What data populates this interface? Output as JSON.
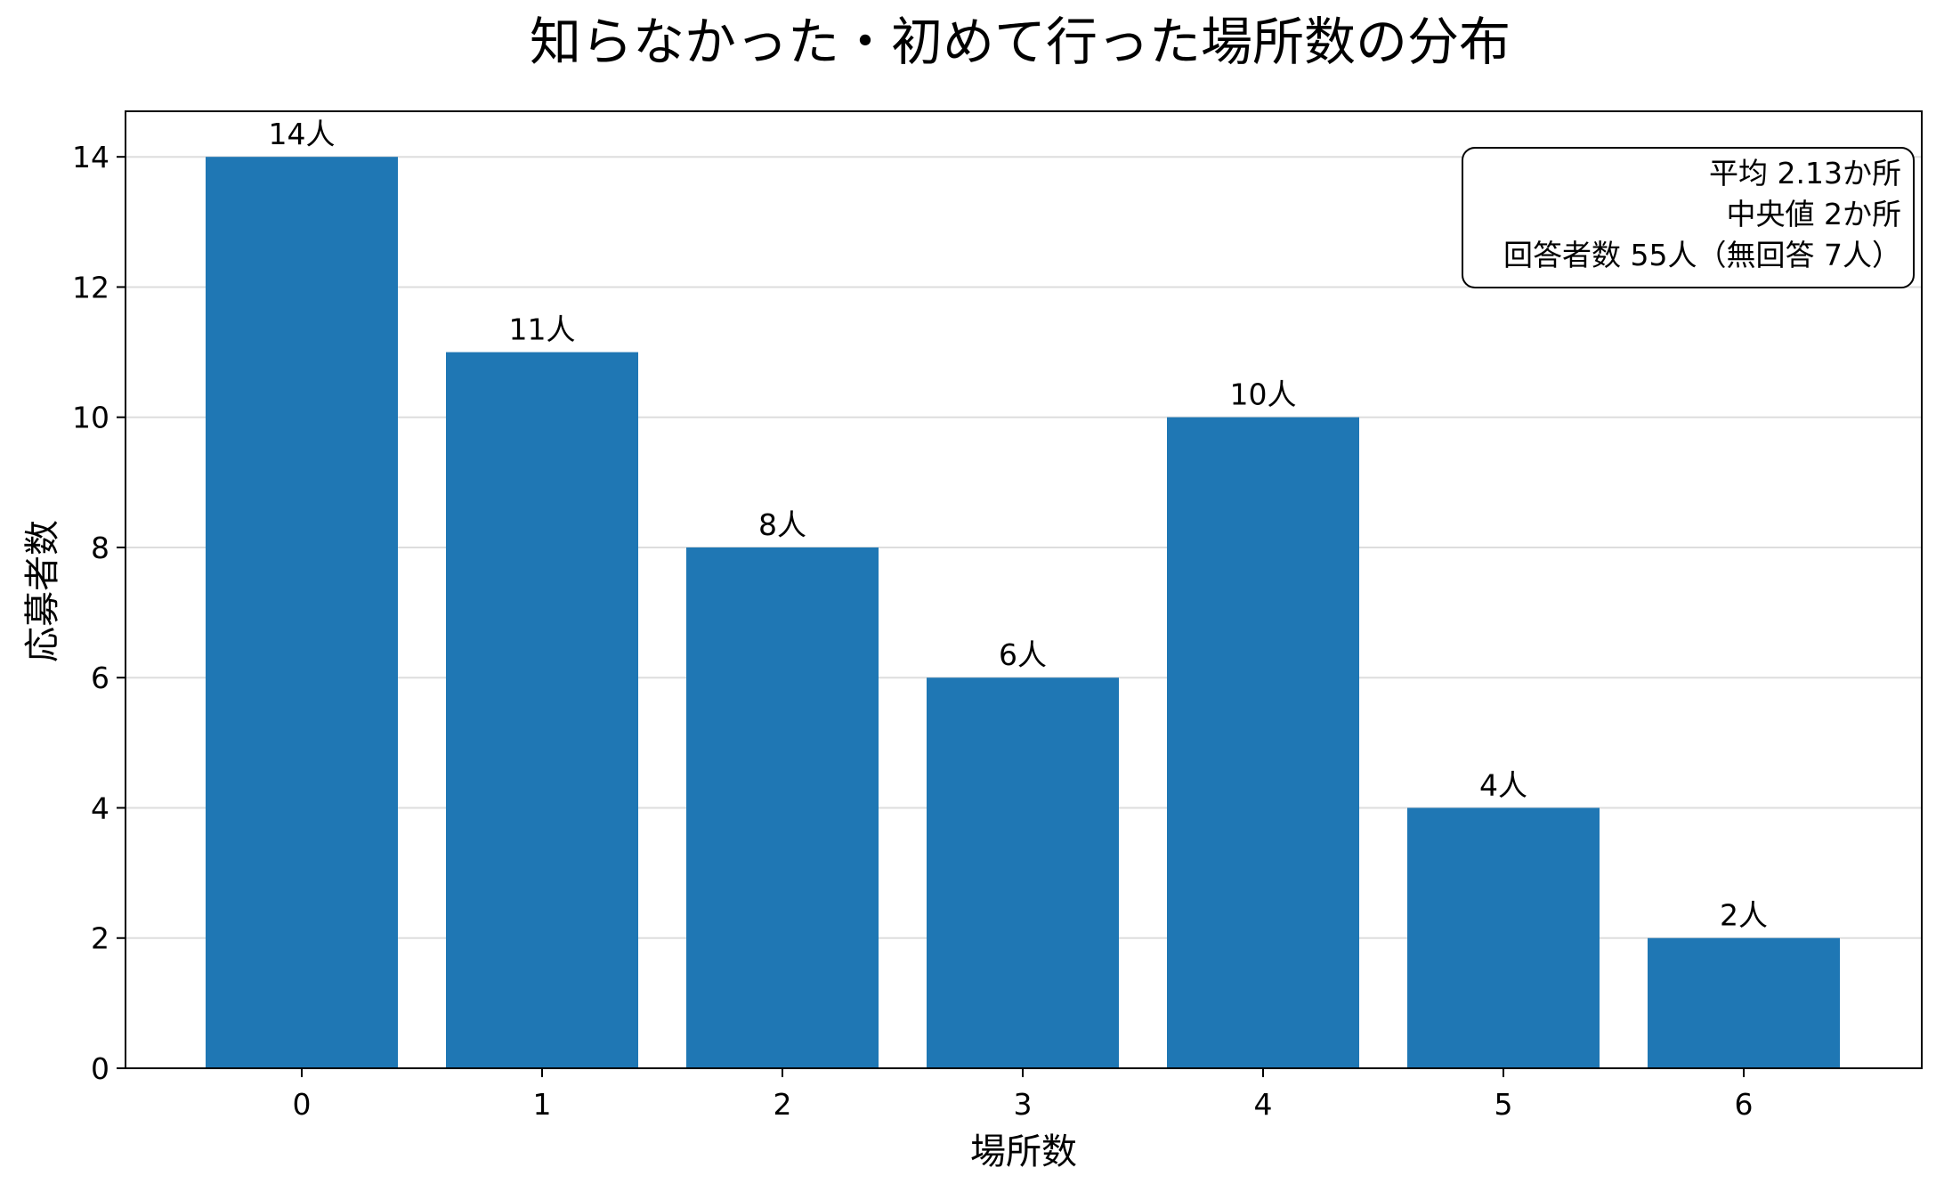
{
  "chart_data": {
    "type": "bar",
    "title": "知らなかった・初めて行った場所数の分布",
    "xlabel": "場所数",
    "ylabel": "応募者数",
    "categories": [
      "0",
      "1",
      "2",
      "3",
      "4",
      "5",
      "6"
    ],
    "values": [
      14,
      11,
      8,
      6,
      10,
      4,
      2
    ],
    "data_labels": [
      "14人",
      "11人",
      "8人",
      "6人",
      "10人",
      "4人",
      "2人"
    ],
    "ylim": [
      0,
      14.7
    ],
    "yticks": [
      0,
      2,
      4,
      6,
      8,
      10,
      12,
      14
    ],
    "grid": "horizontal",
    "bar_color": "#1f77b4",
    "stats_box": {
      "placement": "top-right",
      "lines": [
        "平均 2.13か所",
        "中央値 2か所",
        "回答者数 55人（無回答 7人）"
      ]
    }
  }
}
